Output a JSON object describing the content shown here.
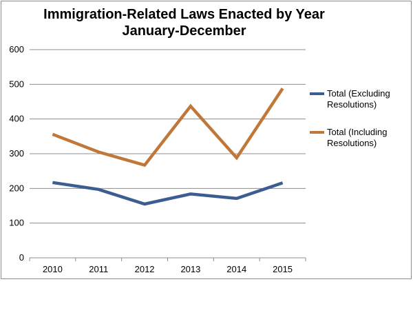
{
  "chart_data": {
    "type": "line",
    "title": "Immigration-Related Laws Enacted by Year",
    "subtitle": "January-December",
    "categories": [
      "2010",
      "2011",
      "2012",
      "2013",
      "2014",
      "2015"
    ],
    "y_ticks": [
      "0",
      "100",
      "200",
      "300",
      "400",
      "500",
      "600"
    ],
    "ylim": [
      0,
      600
    ],
    "grid": true,
    "legend_position": "right",
    "series": [
      {
        "name": "Total (Excluding Resolutions)",
        "values": [
          217,
          197,
          155,
          184,
          171,
          216
        ],
        "color": "#3b5d92"
      },
      {
        "name": "Total (Including Resolutions)",
        "values": [
          356,
          305,
          267,
          437,
          288,
          488
        ],
        "color": "#c0773a"
      }
    ]
  }
}
